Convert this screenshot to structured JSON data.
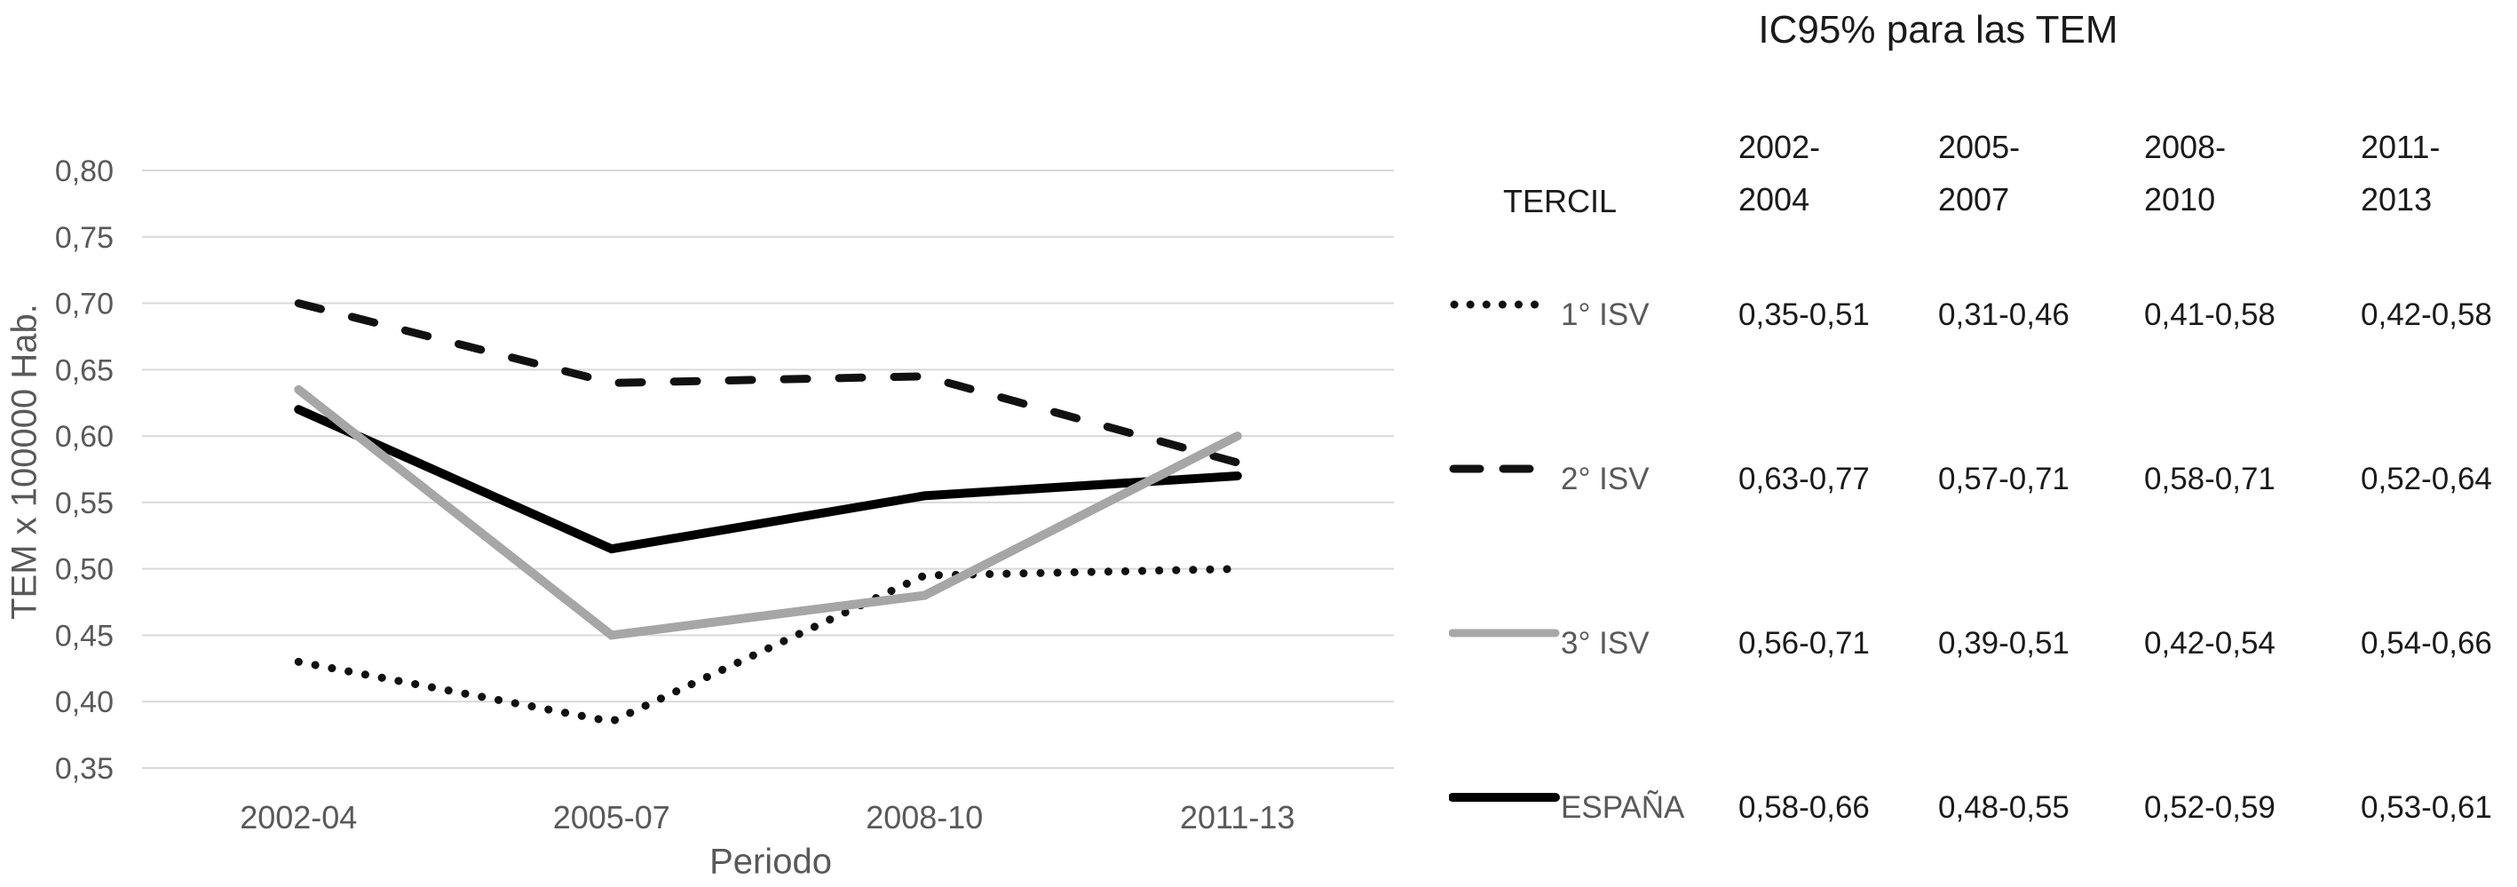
{
  "chart_data": {
    "type": "line",
    "title": "",
    "xlabel": "Periodo",
    "ylabel": "TEM x 100000 Hab.",
    "categories": [
      "2002-04",
      "2005-07",
      "2008-10",
      "2011-13"
    ],
    "series": [
      {
        "name": "1° ISV",
        "line_style": "dotted",
        "color": "#111111",
        "values": [
          0.43,
          0.385,
          0.495,
          0.5
        ]
      },
      {
        "name": "2° ISV",
        "line_style": "dashed",
        "color": "#111111",
        "values": [
          0.7,
          0.64,
          0.645,
          0.58
        ]
      },
      {
        "name": "3° ISV",
        "line_style": "solid",
        "color": "#a6a6a6",
        "values": [
          0.635,
          0.45,
          0.48,
          0.6
        ]
      },
      {
        "name": "ESPAÑA",
        "line_style": "solid",
        "color": "#000000",
        "values": [
          0.62,
          0.515,
          0.555,
          0.57
        ]
      }
    ],
    "ylim": [
      0.35,
      0.8
    ],
    "yticks": [
      0.8,
      0.75,
      0.7,
      0.65,
      0.6,
      0.55,
      0.5,
      0.45,
      0.4,
      0.35
    ],
    "ytick_labels": [
      "0,80",
      "0,75",
      "0,70",
      "0,65",
      "0,60",
      "0,55",
      "0,50",
      "0,45",
      "0,40",
      "0,35"
    ],
    "grid": "horizontal",
    "legend_position": "table-right"
  },
  "table": {
    "title": "IC95% para las TEM",
    "tercil_header": "TERCIL",
    "period_headers": [
      "2002-\n2004",
      "2005-\n2007",
      "2008-\n2010",
      "2011-\n2013"
    ],
    "rows": [
      {
        "label": "1° ISV",
        "symbol": "dotted",
        "values": [
          "0,35-0,51",
          "0,31-0,46",
          "0,41-0,58",
          "0,42-0,58"
        ]
      },
      {
        "label": "2° ISV",
        "symbol": "dashed",
        "values": [
          "0,63-0,77",
          "0,57-0,71",
          "0,58-0,71",
          "0,52-0,64"
        ]
      },
      {
        "label": "3° ISV",
        "symbol": "solid-gray",
        "values": [
          "0,56-0,71",
          "0,39-0,51",
          "0,42-0,54",
          "0,54-0,66"
        ]
      },
      {
        "label": "ESPAÑA",
        "symbol": "solid-black",
        "values": [
          "0,58-0,66",
          "0,48-0,55",
          "0,52-0,59",
          "0,53-0,61"
        ]
      }
    ]
  },
  "colors": {
    "text_dark": "#1a1a1a",
    "text_gray": "#595959",
    "gridline": "#d9d9d9",
    "series_gray": "#a6a6a6",
    "series_black": "#000000"
  }
}
